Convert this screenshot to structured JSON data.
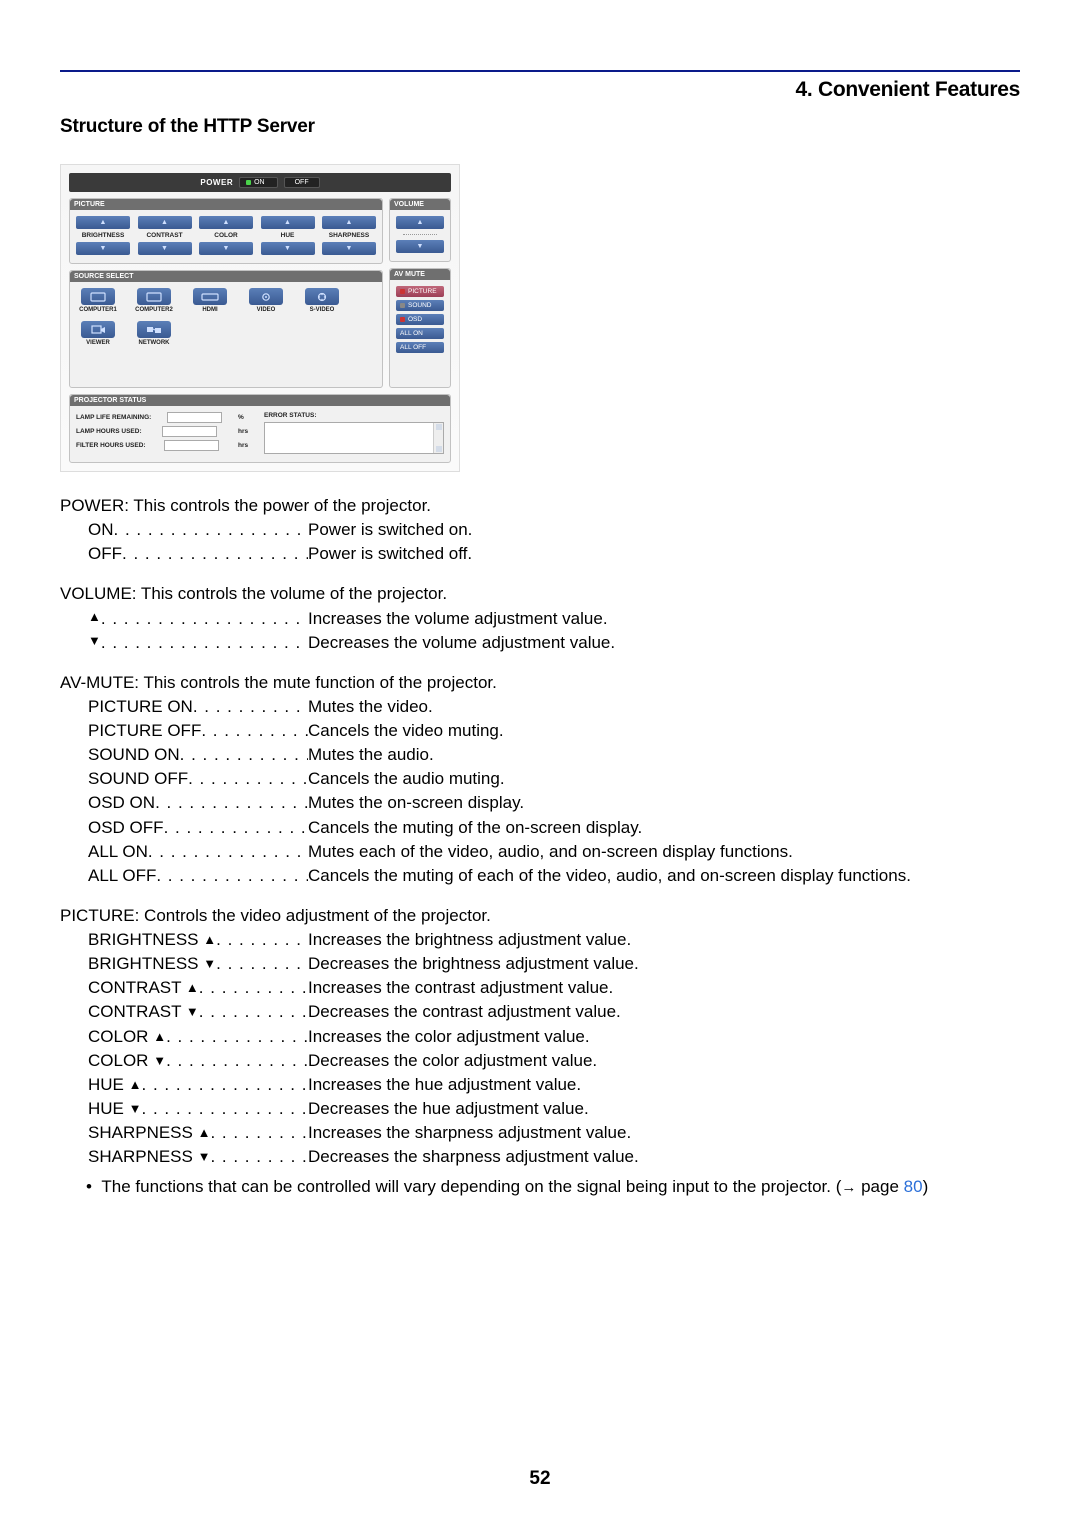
{
  "header": {
    "chapter": "4. Convenient Features",
    "section": "Structure of the HTTP Server"
  },
  "pageNumber": "52",
  "screenshot": {
    "powerLabel": "POWER",
    "onLabel": "ON",
    "offLabel": "OFF",
    "panelPicture": "PICTURE",
    "panelVolume": "VOLUME",
    "panelSource": "SOURCE SELECT",
    "panelAvMute": "AV MUTE",
    "panelStatus": "PROJECTOR STATUS",
    "pictureCols": [
      "BRIGHTNESS",
      "CONTRAST",
      "COLOR",
      "HUE",
      "SHARPNESS"
    ],
    "sources": [
      "COMPUTER1",
      "COMPUTER2",
      "HDMI",
      "VIDEO",
      "S-VIDEO",
      "VIEWER",
      "NETWORK"
    ],
    "avMute": {
      "picture": "PICTURE",
      "sound": "SOUND",
      "osd": "OSD",
      "allOn": "ALL ON",
      "allOff": "ALL OFF"
    },
    "status": {
      "lampLife": "LAMP LIFE REMAINING:",
      "lampLifeUnit": "%",
      "lampHours": "LAMP HOURS USED:",
      "lampHoursUnit": "hrs",
      "filterHours": "FILTER HOURS USED:",
      "filterHoursUnit": "hrs",
      "errorStatus": "ERROR STATUS:"
    }
  },
  "sections": {
    "power": {
      "intro": "POWER: This controls the power of the projector.",
      "rows": [
        {
          "term": "ON",
          "desc": "Power is switched on."
        },
        {
          "term": "OFF",
          "desc": "Power is switched off."
        }
      ]
    },
    "volume": {
      "intro": "VOLUME: This controls the volume of the projector.",
      "rows": [
        {
          "term": "▲",
          "plainTri": true,
          "desc": "Increases the volume adjustment value."
        },
        {
          "term": "▼",
          "plainTri": true,
          "desc": "Decreases the volume adjustment value."
        }
      ]
    },
    "avmute": {
      "intro": "AV-MUTE: This controls the mute function of the projector.",
      "rows": [
        {
          "term": "PICTURE ON",
          "desc": "Mutes the video."
        },
        {
          "term": "PICTURE OFF",
          "desc": "Cancels the video muting."
        },
        {
          "term": "SOUND ON",
          "desc": "Mutes the audio."
        },
        {
          "term": "SOUND OFF",
          "desc": "Cancels the audio muting."
        },
        {
          "term": "OSD ON",
          "desc": "Mutes the on-screen display."
        },
        {
          "term": "OSD OFF",
          "desc": "Cancels the muting of the on-screen display."
        },
        {
          "term": "ALL ON",
          "desc": "Mutes each of the video, audio, and on-screen display functions."
        },
        {
          "term": "ALL OFF",
          "desc": "Cancels the muting of each of the video, audio, and on-screen display functions."
        }
      ]
    },
    "picture": {
      "intro": "PICTURE: Controls the video adjustment of the projector.",
      "rows": [
        {
          "term": "BRIGHTNESS ▲",
          "desc": "Increases the brightness adjustment value."
        },
        {
          "term": "BRIGHTNESS ▼",
          "desc": "Decreases the brightness adjustment value."
        },
        {
          "term": "CONTRAST ▲",
          "desc": "Increases the contrast adjustment value."
        },
        {
          "term": "CONTRAST ▼",
          "desc": "Decreases the contrast adjustment value."
        },
        {
          "term": "COLOR ▲",
          "desc": "Increases the color adjustment value."
        },
        {
          "term": "COLOR ▼",
          "desc": "Decreases the color adjustment value."
        },
        {
          "term": "HUE ▲",
          "desc": "Increases the hue adjustment value."
        },
        {
          "term": "HUE ▼",
          "desc": "Decreases the hue adjustment value."
        },
        {
          "term": "SHARPNESS ▲",
          "desc": "Increases the sharpness adjustment value."
        },
        {
          "term": "SHARPNESS ▼",
          "desc": "Decreases the sharpness adjustment value."
        }
      ],
      "note": {
        "bullet": "•",
        "text": "The functions that can be controlled will vary depending on the signal being input to the projector. (",
        "arrow": "→",
        "pageWord": " page ",
        "pageNum": "80",
        "close": ")"
      }
    }
  }
}
